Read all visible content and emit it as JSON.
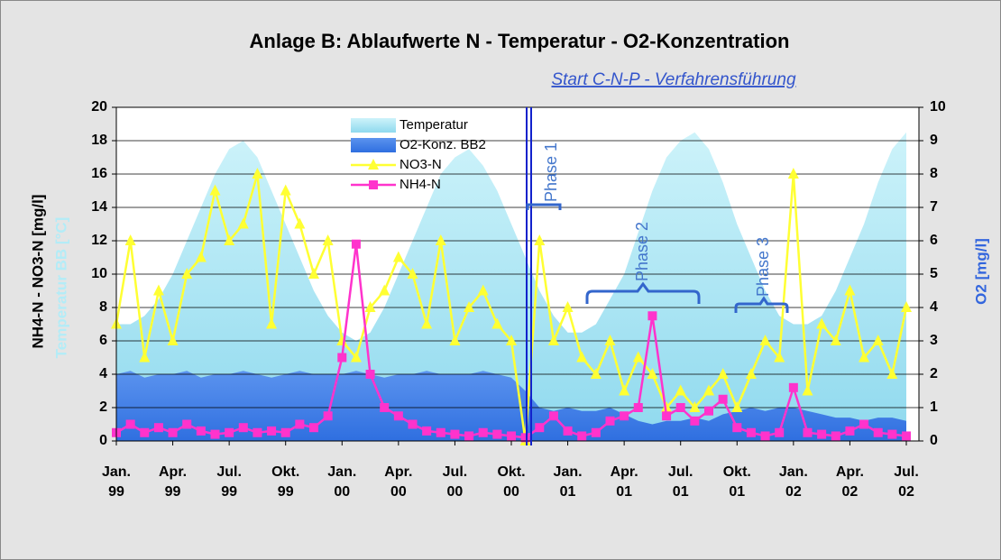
{
  "chart_data": {
    "type": "line",
    "title": "Anlage B: Ablaufwerte N - Temperatur - O2-Konzentration",
    "ylabel": "NH4-N - NO3-N [mg/l]",
    "ylabel_temperature": "Temperatur BB [°C]",
    "y2label": "O2 [mg/l]",
    "annotations": [
      "Start C-N-P - Verfahrensführung",
      "Phase 1",
      "Phase 2",
      "Phase 3"
    ],
    "categories": [
      "Jan. 99",
      null,
      null,
      null,
      "Apr. 99",
      null,
      null,
      null,
      "Jul. 99",
      null,
      null,
      null,
      "Okt. 99",
      null,
      null,
      null,
      "Jan. 00",
      null,
      null,
      null,
      "Apr. 00",
      null,
      null,
      null,
      "Jul. 00",
      null,
      null,
      null,
      "Okt. 00",
      null,
      null,
      null,
      "Jan. 01",
      null,
      null,
      null,
      "Apr. 01",
      null,
      null,
      null,
      "Jul. 01",
      null,
      null,
      null,
      "Okt. 01",
      null,
      null,
      null,
      "Jan. 02",
      null,
      null,
      null,
      "Apr. 02",
      null,
      null,
      null,
      "Jul. 02"
    ],
    "ylim": [
      0,
      20
    ],
    "yticks": [
      0,
      2,
      4,
      6,
      8,
      10,
      12,
      14,
      16,
      18,
      20
    ],
    "y2lim": [
      0,
      10
    ],
    "y2ticks": [
      0,
      1,
      2,
      3,
      4,
      5,
      6,
      7,
      8,
      9,
      10
    ],
    "grid": true,
    "series": [
      {
        "name": "Temperatur",
        "kind": "area",
        "color": "#aeeaf5",
        "values": [
          7,
          7,
          7.5,
          8.5,
          10,
          12,
          14,
          16,
          17.5,
          18,
          17,
          15,
          13,
          11,
          9,
          7.5,
          6.5,
          6,
          6.5,
          8,
          10,
          12,
          14,
          16,
          17,
          17.5,
          16.5,
          15,
          13,
          11,
          9,
          7.5,
          6.5,
          6.5,
          7,
          8.5,
          10,
          12.5,
          15,
          17,
          18,
          18.5,
          17.5,
          15.5,
          13,
          11,
          9,
          7.5,
          7,
          7,
          7.5,
          9,
          11,
          13,
          15.5,
          17.5,
          18.5
        ]
      },
      {
        "name": "O2-Konz. BB2",
        "kind": "area",
        "axis": "y2",
        "color": "#4f86e8",
        "values": [
          2,
          2.1,
          1.9,
          2,
          2,
          2.1,
          1.9,
          2,
          2,
          2.1,
          2,
          1.9,
          2,
          2.1,
          2,
          2,
          2,
          2.1,
          2,
          1.9,
          2,
          2,
          2.1,
          2,
          2,
          2,
          2.1,
          2,
          1.9,
          1.5,
          1,
          0.9,
          1,
          0.9,
          0.9,
          1,
          0.8,
          0.6,
          0.5,
          0.6,
          0.6,
          0.7,
          0.6,
          0.8,
          0.9,
          1,
          0.9,
          1,
          1,
          0.9,
          0.8,
          0.7,
          0.7,
          0.6,
          0.7,
          0.7,
          0.6
        ]
      },
      {
        "name": "NO3-N",
        "kind": "line",
        "marker": "triangle",
        "color": "#ffff33",
        "values": [
          7,
          12,
          5,
          9,
          6,
          10,
          11,
          15,
          12,
          13,
          16,
          7,
          15,
          13,
          10,
          12,
          6,
          5,
          8,
          9,
          11,
          10,
          7,
          12,
          6,
          8,
          9,
          7,
          6,
          0,
          12,
          6,
          8,
          5,
          4,
          6,
          3,
          5,
          4,
          2,
          3,
          2,
          3,
          4,
          2,
          4,
          6,
          5,
          16,
          3,
          7,
          6,
          9,
          5,
          6,
          4,
          8
        ]
      },
      {
        "name": "NH4-N",
        "kind": "line",
        "marker": "square",
        "color": "#ff33cc",
        "values": [
          0.5,
          1,
          0.5,
          0.8,
          0.5,
          1,
          0.6,
          0.4,
          0.5,
          0.8,
          0.5,
          0.6,
          0.5,
          1,
          0.8,
          1.5,
          5,
          11.8,
          4,
          2,
          1.5,
          1,
          0.6,
          0.5,
          0.4,
          0.3,
          0.5,
          0.4,
          0.3,
          0.2,
          0.8,
          1.5,
          0.6,
          0.3,
          0.5,
          1.2,
          1.5,
          2,
          7.5,
          1.5,
          2,
          1.2,
          1.8,
          2.5,
          0.8,
          0.5,
          0.3,
          0.5,
          3.2,
          0.5,
          0.4,
          0.3,
          0.6,
          1,
          0.5,
          0.4,
          0.3
        ]
      }
    ]
  }
}
